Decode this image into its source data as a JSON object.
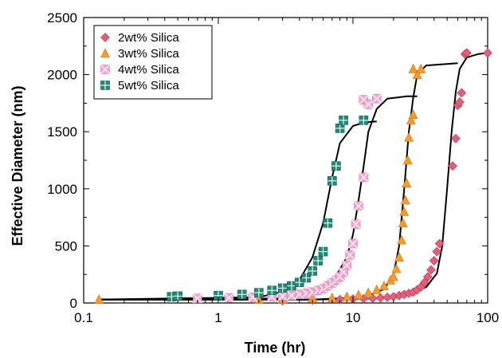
{
  "chart_data": {
    "type": "scatter",
    "xlabel": "Time (hr)",
    "ylabel": "Effective Diameter (nm)",
    "xscale": "log",
    "xlim": [
      0.1,
      100
    ],
    "ylim": [
      0,
      2500
    ],
    "x_ticks": [
      "0.1",
      "1",
      "10",
      "100"
    ],
    "y_ticks": [
      "0",
      "500",
      "1000",
      "1500",
      "2000",
      "2500"
    ],
    "grid": false,
    "legend_position": "top-left",
    "series": [
      {
        "name": "2wt% Silica",
        "marker": "diamond",
        "color": "#e0607a",
        "points": [
          [
            3,
            20
          ],
          [
            5,
            25
          ],
          [
            8,
            30
          ],
          [
            10,
            35
          ],
          [
            12,
            38
          ],
          [
            14,
            40
          ],
          [
            16,
            45
          ],
          [
            18,
            50
          ],
          [
            20,
            55
          ],
          [
            22,
            65
          ],
          [
            24,
            75
          ],
          [
            26,
            85
          ],
          [
            28,
            95
          ],
          [
            30,
            115
          ],
          [
            32,
            140
          ],
          [
            34,
            180
          ],
          [
            36,
            230
          ],
          [
            38,
            290
          ],
          [
            40,
            370
          ],
          [
            42,
            450
          ],
          [
            44,
            520
          ],
          [
            55,
            1200
          ],
          [
            58,
            1440
          ],
          [
            60,
            1730
          ],
          [
            62,
            1760
          ],
          [
            64,
            1840
          ],
          [
            68,
            2180
          ],
          [
            70,
            2190
          ],
          [
            100,
            2190
          ]
        ],
        "fit": [
          [
            0.13,
            30
          ],
          [
            5,
            30
          ],
          [
            15,
            40
          ],
          [
            25,
            70
          ],
          [
            35,
            140
          ],
          [
            42,
            260
          ],
          [
            46,
            500
          ],
          [
            50,
            1000
          ],
          [
            54,
            1500
          ],
          [
            58,
            1850
          ],
          [
            62,
            2050
          ],
          [
            70,
            2150
          ],
          [
            85,
            2180
          ],
          [
            100,
            2190
          ]
        ]
      },
      {
        "name": "3wt% Silica",
        "marker": "triangle",
        "color": "#f79a2e",
        "points": [
          [
            0.13,
            30
          ],
          [
            2,
            30
          ],
          [
            3,
            35
          ],
          [
            5,
            40
          ],
          [
            7,
            45
          ],
          [
            9,
            55
          ],
          [
            11,
            70
          ],
          [
            13,
            90
          ],
          [
            15,
            115
          ],
          [
            17,
            150
          ],
          [
            19,
            200
          ],
          [
            20,
            230
          ],
          [
            21,
            300
          ],
          [
            22,
            400
          ],
          [
            23,
            550
          ],
          [
            23.5,
            700
          ],
          [
            24,
            800
          ],
          [
            24.5,
            900
          ],
          [
            25,
            1050
          ],
          [
            25.5,
            1250
          ],
          [
            26,
            1450
          ],
          [
            27,
            1600
          ],
          [
            28,
            1650
          ],
          [
            28,
            2050
          ],
          [
            30,
            2000
          ],
          [
            32,
            2050
          ]
        ],
        "fit": [
          [
            0.13,
            30
          ],
          [
            5,
            30
          ],
          [
            12,
            50
          ],
          [
            17,
            120
          ],
          [
            20,
            250
          ],
          [
            22,
            500
          ],
          [
            24,
            1000
          ],
          [
            26,
            1500
          ],
          [
            28,
            1800
          ],
          [
            30,
            2000
          ],
          [
            35,
            2080
          ],
          [
            60,
            2100
          ]
        ]
      },
      {
        "name": "4wt% Silica",
        "marker": "cross-square",
        "color": "#f4a6cf",
        "points": [
          [
            0.7,
            40
          ],
          [
            1.2,
            45
          ],
          [
            1.8,
            50
          ],
          [
            2.5,
            55
          ],
          [
            3,
            60
          ],
          [
            3.5,
            65
          ],
          [
            4,
            75
          ],
          [
            4.5,
            85
          ],
          [
            5,
            95
          ],
          [
            5.5,
            110
          ],
          [
            6,
            125
          ],
          [
            6.5,
            150
          ],
          [
            7,
            175
          ],
          [
            7.5,
            200
          ],
          [
            8,
            230
          ],
          [
            8.5,
            270
          ],
          [
            9,
            330
          ],
          [
            9.5,
            420
          ],
          [
            10,
            520
          ],
          [
            10.5,
            690
          ],
          [
            11,
            850
          ],
          [
            12,
            1100
          ],
          [
            12,
            1780
          ],
          [
            13,
            1740
          ],
          [
            15,
            1790
          ]
        ],
        "fit": [
          [
            0.13,
            30
          ],
          [
            3,
            40
          ],
          [
            5,
            80
          ],
          [
            7,
            180
          ],
          [
            9,
            400
          ],
          [
            10,
            600
          ],
          [
            11,
            900
          ],
          [
            12,
            1200
          ],
          [
            13,
            1500
          ],
          [
            15,
            1700
          ],
          [
            18,
            1790
          ],
          [
            25,
            1810
          ],
          [
            30,
            1810
          ]
        ]
      },
      {
        "name": "5wt% Silica",
        "marker": "plus-square",
        "color": "#1f8a78",
        "points": [
          [
            0.45,
            55
          ],
          [
            0.5,
            60
          ],
          [
            1,
            65
          ],
          [
            1.5,
            75
          ],
          [
            2,
            90
          ],
          [
            2.5,
            110
          ],
          [
            3,
            130
          ],
          [
            3.5,
            150
          ],
          [
            4,
            180
          ],
          [
            4.5,
            220
          ],
          [
            5,
            280
          ],
          [
            5.5,
            370
          ],
          [
            6,
            450
          ],
          [
            6.5,
            700
          ],
          [
            7,
            1070
          ],
          [
            7.5,
            1200
          ],
          [
            8,
            1530
          ],
          [
            8.5,
            1600
          ],
          [
            12,
            1600
          ]
        ],
        "fit": [
          [
            0.13,
            30
          ],
          [
            2,
            50
          ],
          [
            3,
            100
          ],
          [
            4,
            200
          ],
          [
            5,
            400
          ],
          [
            6,
            700
          ],
          [
            7,
            1100
          ],
          [
            8,
            1400
          ],
          [
            10,
            1550
          ],
          [
            12,
            1580
          ],
          [
            15,
            1590
          ]
        ]
      }
    ]
  }
}
